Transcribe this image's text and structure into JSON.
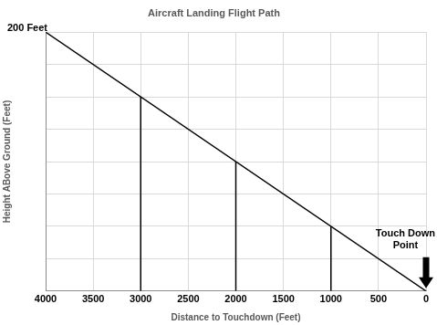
{
  "chart_data": {
    "type": "line",
    "title": "Aircraft Landing Flight Path",
    "x_label": "Distance to Touchdown (Feet)",
    "y_label": "Height ABove Ground (Feet)",
    "series": [
      {
        "x": [
          4000,
          0
        ],
        "values": [
          200,
          0
        ],
        "color": "#000000"
      },
      {
        "x": [
          3000,
          3000
        ],
        "values": [
          0,
          150
        ],
        "color": "#000000"
      },
      {
        "x": [
          2000,
          2000
        ],
        "values": [
          0,
          100
        ],
        "color": "#000000"
      },
      {
        "x": [
          1000,
          1000
        ],
        "values": [
          0,
          50
        ],
        "color": "#000000"
      }
    ],
    "xlim": [
      4000,
      0
    ],
    "xticks": [
      4000,
      3500,
      3000,
      2500,
      2000,
      1500,
      1000,
      500,
      0
    ],
    "ylim": [
      0,
      200
    ],
    "yticks": [
      0,
      25,
      50,
      75,
      100,
      125,
      150,
      175,
      200
    ],
    "grid": true,
    "tick_labels": "x",
    "annotations": [
      {
        "text": "200 Feet",
        "x": 4000,
        "y": 200
      },
      {
        "text": [
          "Touch Down",
          "Point"
        ],
        "x": 0,
        "y": 0
      }
    ]
  }
}
